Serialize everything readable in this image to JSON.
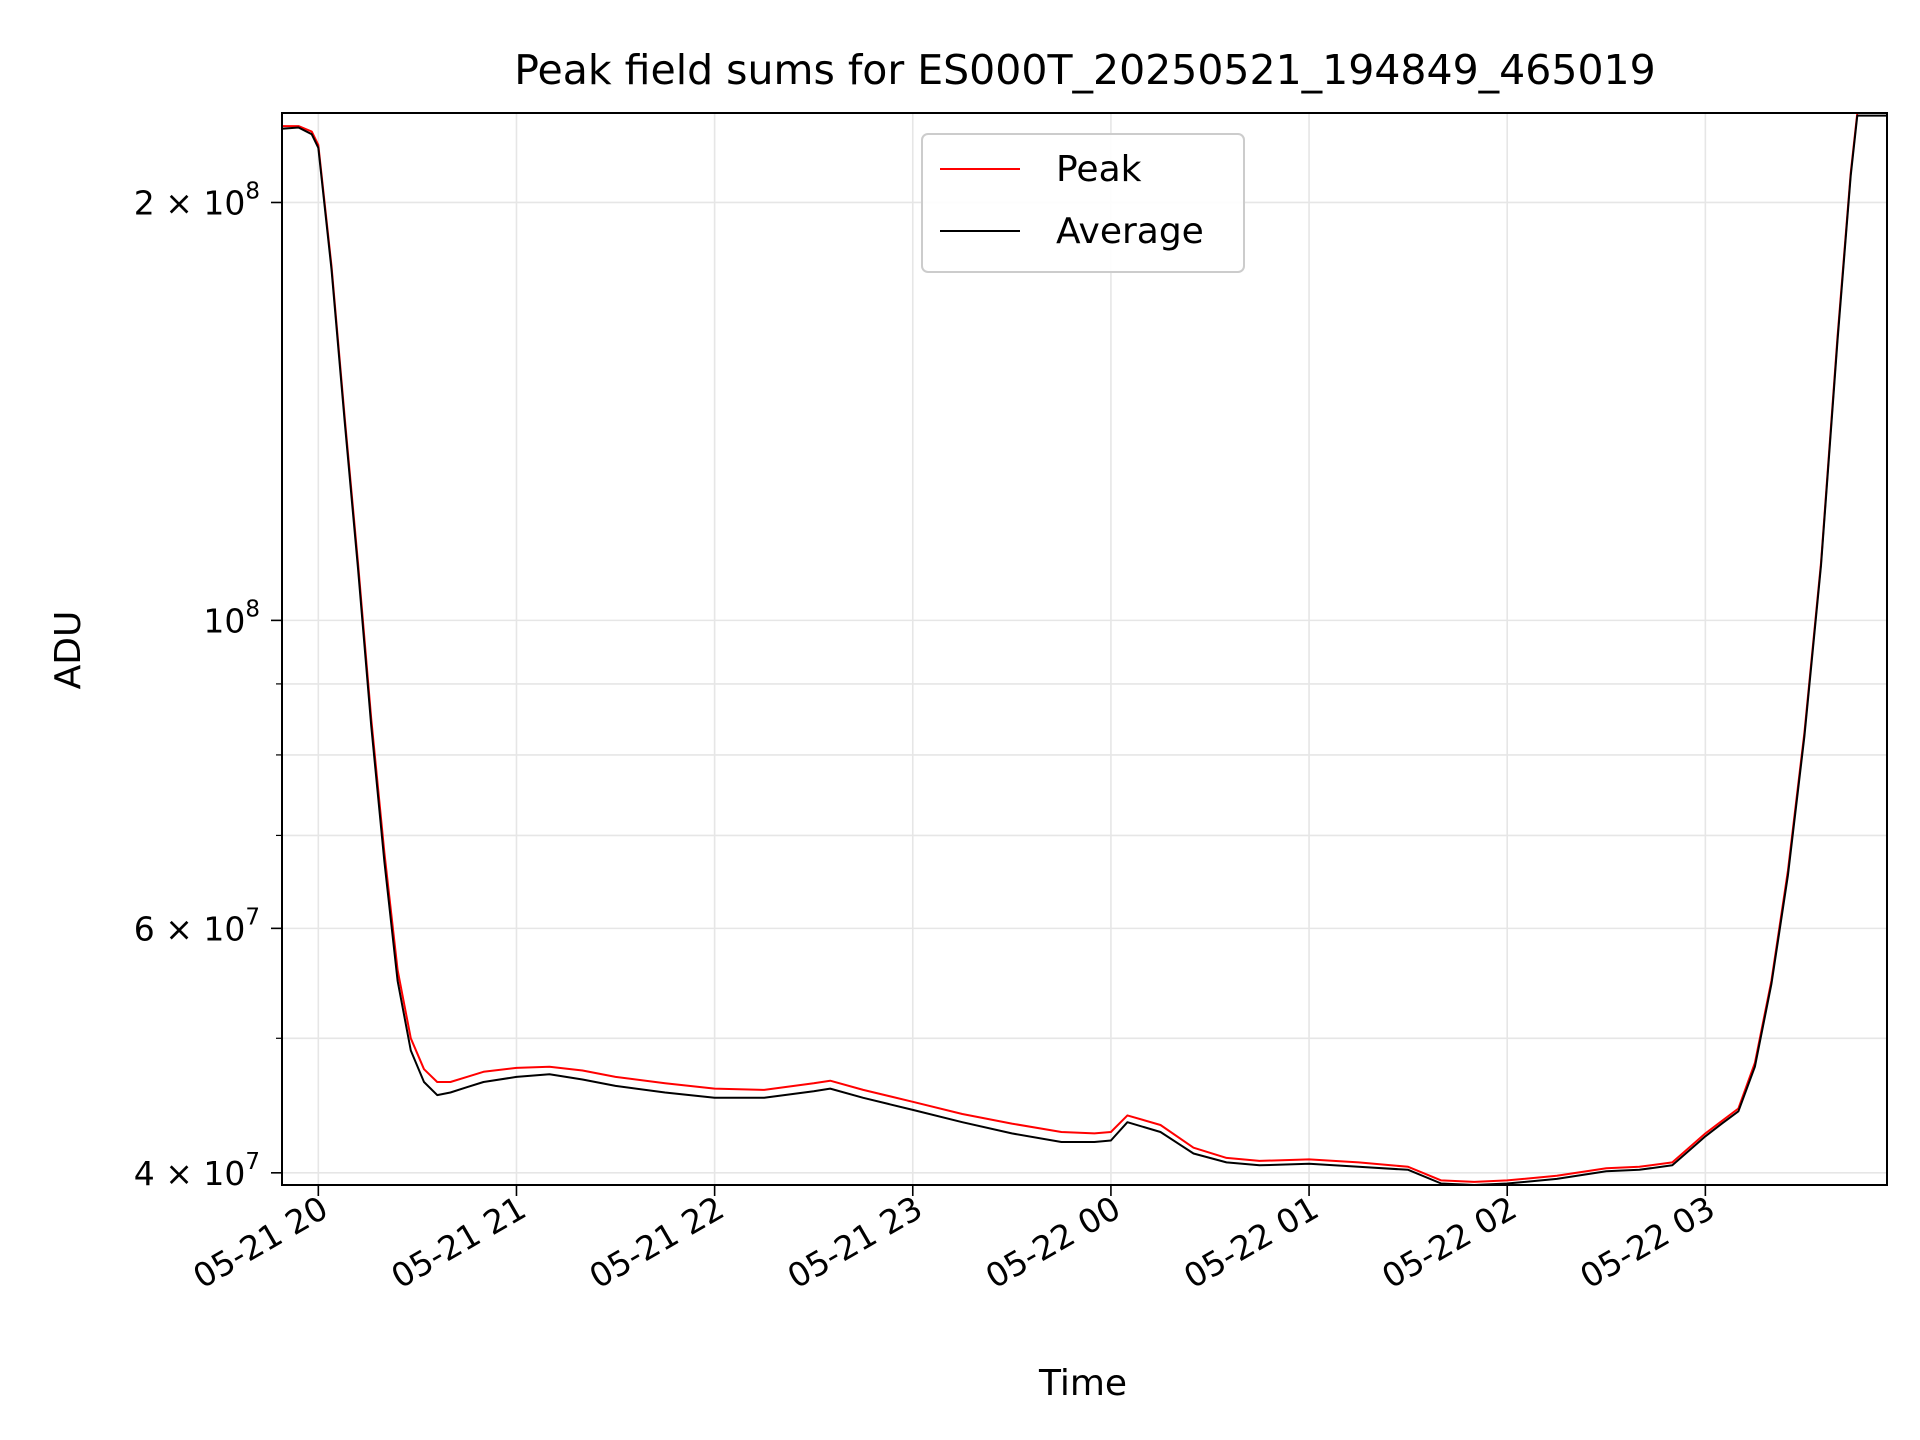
{
  "chart_data": {
    "type": "line",
    "title": "Peak field sums for ES000T_20250521_194849_465019",
    "xlabel": "Time",
    "ylabel": "ADU",
    "yscale": "log",
    "grid": true,
    "legend_placement": "upper-center",
    "xlim": [
      "2025-05-21 19:49",
      "2025-05-22 03:55"
    ],
    "ylim": [
      39200000,
      232000000
    ],
    "x_ticks": [
      "05-21 20",
      "05-21 21",
      "05-21 22",
      "05-21 23",
      "05-22 00",
      "05-22 01",
      "05-22 02",
      "05-22 03"
    ],
    "x_tick_times": [
      "2025-05-21 20:00",
      "2025-05-21 21:00",
      "2025-05-21 22:00",
      "2025-05-21 23:00",
      "2025-05-22 00:00",
      "2025-05-22 01:00",
      "2025-05-22 02:00",
      "2025-05-22 03:00"
    ],
    "y_ticks": [
      {
        "value": 40000000,
        "mantissa": "4",
        "exp": "7"
      },
      {
        "value": 60000000,
        "mantissa": "6",
        "exp": "7"
      },
      {
        "value": 100000000,
        "mantissa": "",
        "exp": "8"
      },
      {
        "value": 200000000,
        "mantissa": "2",
        "exp": "8"
      }
    ],
    "y_minor_ticks": [
      50000000,
      70000000,
      80000000,
      90000000
    ],
    "series": [
      {
        "name": "Peak",
        "color": "#ff0000"
      },
      {
        "name": "Average",
        "color": "#000000"
      }
    ],
    "x": [
      "2025-05-21 19:49",
      "2025-05-21 19:54",
      "2025-05-21 19:58",
      "2025-05-21 20:00",
      "2025-05-21 20:04",
      "2025-05-21 20:08",
      "2025-05-21 20:12",
      "2025-05-21 20:16",
      "2025-05-21 20:20",
      "2025-05-21 20:24",
      "2025-05-21 20:28",
      "2025-05-21 20:32",
      "2025-05-21 20:36",
      "2025-05-21 20:40",
      "2025-05-21 20:45",
      "2025-05-21 20:50",
      "2025-05-21 21:00",
      "2025-05-21 21:10",
      "2025-05-21 21:20",
      "2025-05-21 21:30",
      "2025-05-21 21:45",
      "2025-05-21 22:00",
      "2025-05-21 22:15",
      "2025-05-21 22:30",
      "2025-05-21 22:35",
      "2025-05-21 22:45",
      "2025-05-21 23:00",
      "2025-05-21 23:15",
      "2025-05-21 23:30",
      "2025-05-21 23:45",
      "2025-05-21 23:55",
      "2025-05-22 00:00",
      "2025-05-22 00:05",
      "2025-05-22 00:15",
      "2025-05-22 00:25",
      "2025-05-22 00:35",
      "2025-05-22 00:45",
      "2025-05-22 01:00",
      "2025-05-22 01:15",
      "2025-05-22 01:30",
      "2025-05-22 01:40",
      "2025-05-22 01:50",
      "2025-05-22 02:00",
      "2025-05-22 02:15",
      "2025-05-22 02:30",
      "2025-05-22 02:40",
      "2025-05-22 02:50",
      "2025-05-22 03:00",
      "2025-05-22 03:05",
      "2025-05-22 03:10",
      "2025-05-22 03:15",
      "2025-05-22 03:20",
      "2025-05-22 03:25",
      "2025-05-22 03:30",
      "2025-05-22 03:35",
      "2025-05-22 03:40",
      "2025-05-22 03:44",
      "2025-05-22 03:46",
      "2025-05-22 03:55"
    ],
    "peak": [
      227000000,
      227000000,
      225000000,
      220000000,
      180000000,
      140000000,
      110000000,
      85000000,
      68000000,
      56000000,
      50000000,
      47500000,
      46500000,
      46500000,
      46900000,
      47300000,
      47600000,
      47700000,
      47400000,
      46900000,
      46400000,
      46000000,
      45900000,
      46400000,
      46600000,
      45900000,
      45000000,
      44100000,
      43400000,
      42800000,
      42700000,
      42800000,
      44000000,
      43300000,
      41700000,
      41000000,
      40800000,
      40900000,
      40700000,
      40400000,
      39500000,
      39400000,
      39500000,
      39800000,
      40300000,
      40400000,
      40700000,
      42700000,
      43600000,
      44500000,
      48000000,
      55000000,
      66000000,
      83000000,
      110000000,
      160000000,
      210000000,
      232000000,
      232000000
    ],
    "average": [
      226000000,
      226500000,
      224000000,
      219000000,
      179000000,
      139000000,
      109000000,
      84000000,
      67000000,
      55000000,
      49000000,
      46500000,
      45500000,
      45700000,
      46100000,
      46500000,
      46900000,
      47100000,
      46700000,
      46200000,
      45700000,
      45300000,
      45300000,
      45800000,
      46000000,
      45300000,
      44400000,
      43500000,
      42700000,
      42100000,
      42100000,
      42200000,
      43500000,
      42800000,
      41300000,
      40700000,
      40500000,
      40600000,
      40400000,
      40200000,
      39300000,
      39200000,
      39300000,
      39600000,
      40100000,
      40200000,
      40500000,
      42500000,
      43400000,
      44300000,
      47700000,
      54700000,
      65500000,
      82500000,
      109500000,
      159000000,
      209000000,
      231000000,
      231000000
    ]
  }
}
